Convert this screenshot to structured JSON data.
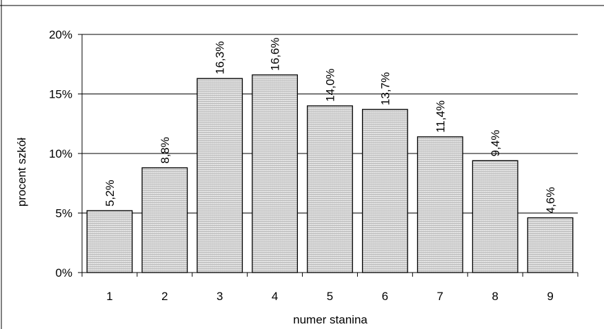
{
  "chart_data": {
    "type": "bar",
    "title": "",
    "xlabel": "numer stanina",
    "ylabel": "procent szkół",
    "categories": [
      "1",
      "2",
      "3",
      "4",
      "5",
      "6",
      "7",
      "8",
      "9"
    ],
    "values": [
      5.2,
      8.8,
      16.3,
      16.6,
      14.0,
      13.7,
      11.4,
      9.4,
      4.6
    ],
    "value_labels": [
      "5,2%",
      "8,8%",
      "16,3%",
      "16,6%",
      "14,0%",
      "13,7%",
      "11,4%",
      "9,4%",
      "4,6%"
    ],
    "ylim": [
      0,
      20
    ],
    "yticks": [
      0,
      5,
      10,
      15,
      20
    ],
    "ytick_labels": [
      "0%",
      "5%",
      "10%",
      "15%",
      "20%"
    ],
    "grid": true,
    "legend": "none",
    "bar_fill": "#dedede",
    "bar_stroke": "#000000"
  }
}
